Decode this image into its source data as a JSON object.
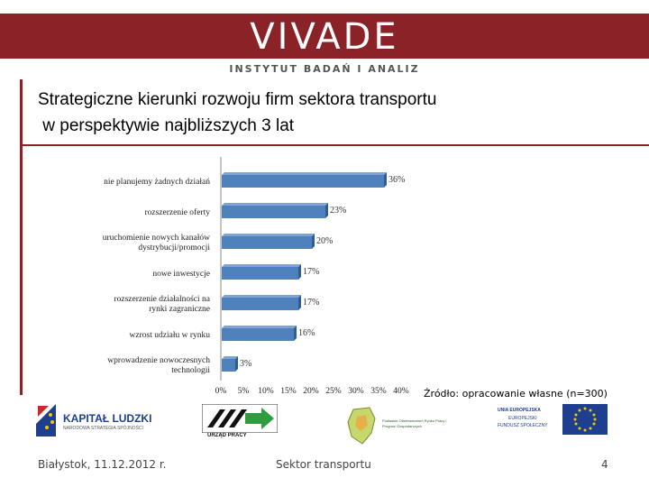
{
  "header": {
    "logo_text": "VIVADE",
    "logo_subtitle": "INSTYTUT BADAŃ I ANALIZ"
  },
  "slide": {
    "title": "Strategiczne kierunki rozwoju firm sektora transportu\n w perspektywie najbliższych 3 lat",
    "source": "Źródło: opracowanie własne (n=300)"
  },
  "chart_data": {
    "type": "bar",
    "orientation": "horizontal",
    "categories": [
      "nie planujemy żadnych działań",
      "rozszerzenie oferty",
      "uruchomienie nowych kanałów dystrybucji/promocji",
      "nowe inwestycje",
      "rozszerzenie działalności na rynki zagraniczne",
      "wzrost udziału w rynku",
      "wprowadzenie nowoczesnych technologii"
    ],
    "values": [
      36,
      23,
      20,
      17,
      17,
      16,
      3
    ],
    "value_labels": [
      "36%",
      "23%",
      "20%",
      "17%",
      "17%",
      "16%",
      "3%"
    ],
    "x_ticks": [
      "0%",
      "5%",
      "10%",
      "15%",
      "20%",
      "25%",
      "30%",
      "35%",
      "40%"
    ],
    "xlim": [
      0,
      40
    ],
    "unit": "%",
    "bar_color": "#4f81bd",
    "grid": false,
    "legend": "none"
  },
  "logos": {
    "kapital_title": "KAPITAŁ LUDZKI",
    "kapital_subtitle": "NARODOWA STRATEGIA SPÓJNOŚCI",
    "urzad": "URZĄD PRACY",
    "obserwatorium": "Podlaskie Obserwatorium Rynku Pracy i Prognoz Gospodarczych",
    "ue_title": "UNIA EUROPEJSKA",
    "ue_line2": "EUROPEJSKI",
    "ue_line3": "FUNDUSZ SPOŁECZNY"
  },
  "footer": {
    "date": "Białystok, 11.12.2012 r.",
    "topic": "Sektor transportu",
    "page": "4"
  },
  "colors": {
    "brand": "#8b2228",
    "bar": "#4f81bd"
  }
}
